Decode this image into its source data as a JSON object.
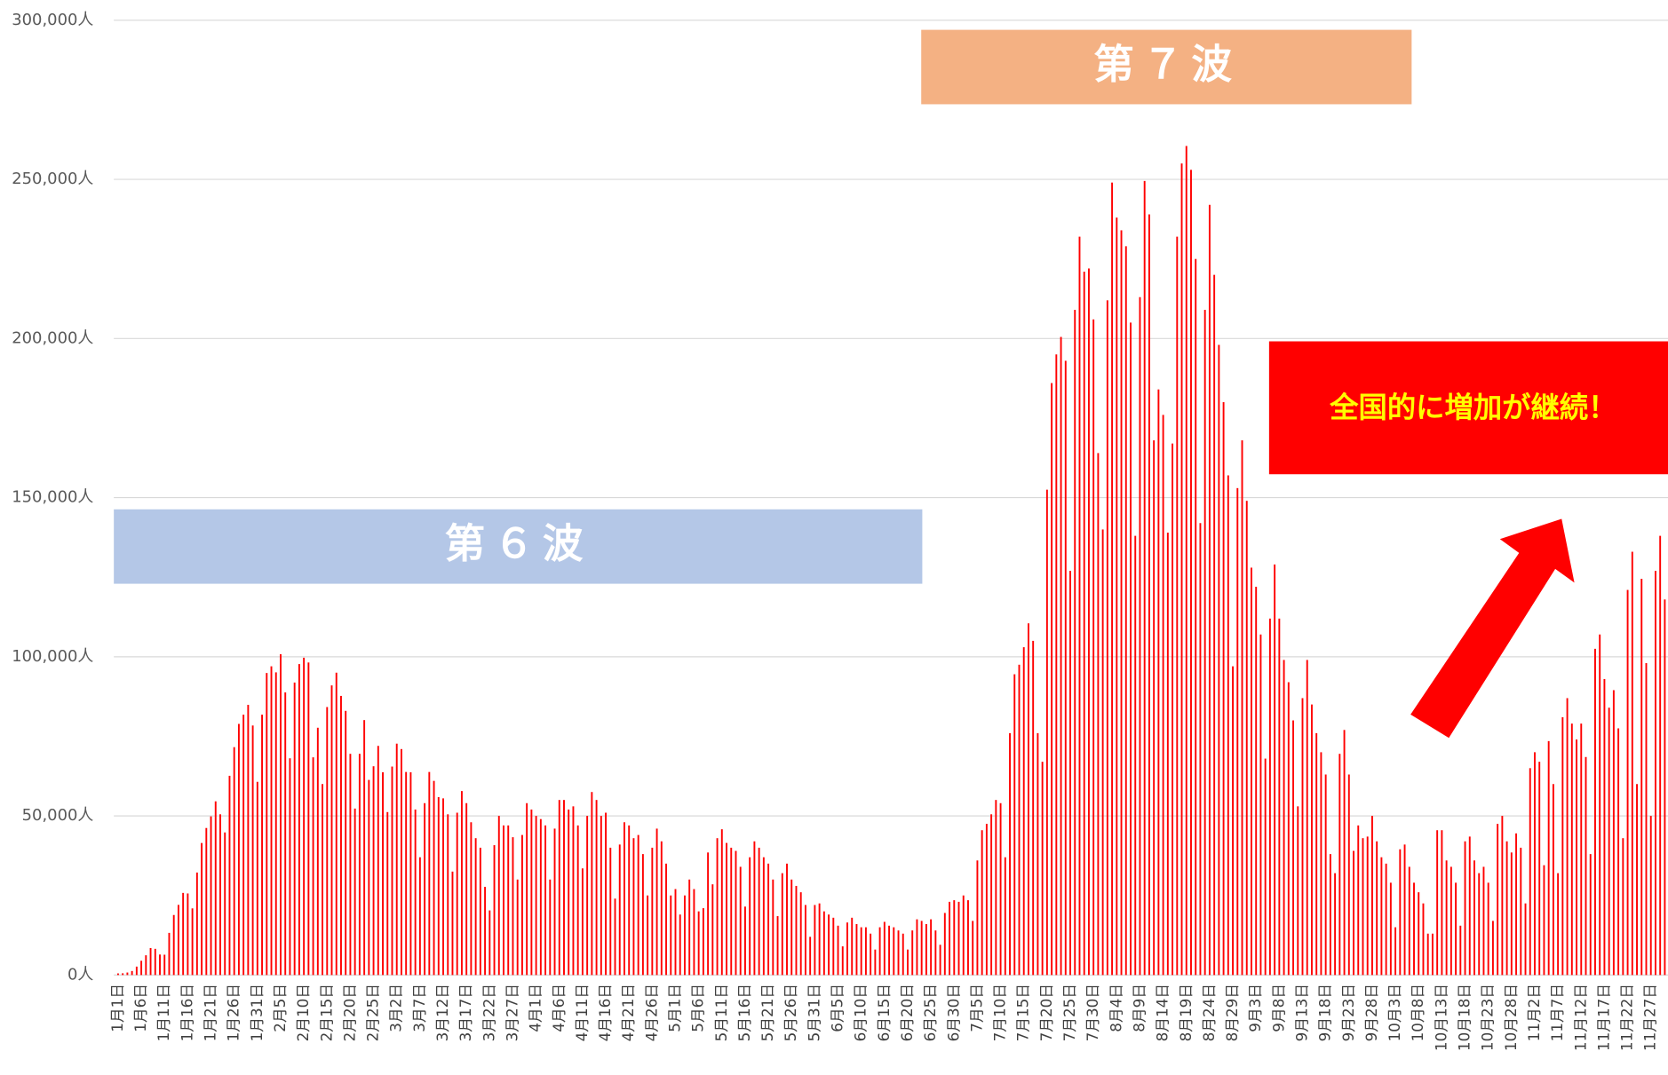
{
  "chart_data": {
    "type": "bar",
    "color": "#ff0000",
    "grid": true,
    "ylim": [
      0,
      300000
    ],
    "yticks": [
      {
        "value": 0,
        "label": "0人"
      },
      {
        "value": 50000,
        "label": "50,000人"
      },
      {
        "value": 100000,
        "label": "100,000人"
      },
      {
        "value": 150000,
        "label": "150,000人"
      },
      {
        "value": 200000,
        "label": "200,000人"
      },
      {
        "value": 250000,
        "label": "250,000人"
      },
      {
        "value": 300000,
        "label": "300,000人"
      }
    ],
    "annotations": [
      "第６波",
      "第７波",
      "全国的に増加が継続！"
    ],
    "categories": [
      "1月1日",
      null,
      null,
      null,
      null,
      "1月6日",
      null,
      null,
      null,
      null,
      "1月11日",
      null,
      null,
      null,
      null,
      "1月16日",
      null,
      null,
      null,
      null,
      "1月21日",
      null,
      null,
      null,
      null,
      "1月26日",
      null,
      null,
      null,
      null,
      "1月31日",
      null,
      null,
      null,
      null,
      "2月5日",
      null,
      null,
      null,
      null,
      "2月10日",
      null,
      null,
      null,
      null,
      "2月15日",
      null,
      null,
      null,
      null,
      "2月20日",
      null,
      null,
      null,
      null,
      "2月25日",
      null,
      null,
      null,
      null,
      "3月2日",
      null,
      null,
      null,
      null,
      "3月7日",
      null,
      null,
      null,
      null,
      "3月12日",
      null,
      null,
      null,
      null,
      "3月17日",
      null,
      null,
      null,
      null,
      "3月22日",
      null,
      null,
      null,
      null,
      "3月27日",
      null,
      null,
      null,
      null,
      "4月1日",
      null,
      null,
      null,
      null,
      "4月6日",
      null,
      null,
      null,
      null,
      "4月11日",
      null,
      null,
      null,
      null,
      "4月16日",
      null,
      null,
      null,
      null,
      "4月21日",
      null,
      null,
      null,
      null,
      "4月26日",
      null,
      null,
      null,
      null,
      "5月1日",
      null,
      null,
      null,
      null,
      "5月6日",
      null,
      null,
      null,
      null,
      "5月11日",
      null,
      null,
      null,
      null,
      "5月16日",
      null,
      null,
      null,
      null,
      "5月21日",
      null,
      null,
      null,
      null,
      "5月26日",
      null,
      null,
      null,
      null,
      "5月31日",
      null,
      null,
      null,
      null,
      "6月5日",
      null,
      null,
      null,
      null,
      "6月10日",
      null,
      null,
      null,
      null,
      "6月15日",
      null,
      null,
      null,
      null,
      "6月20日",
      null,
      null,
      null,
      null,
      "6月25日",
      null,
      null,
      null,
      null,
      "6月30日",
      null,
      null,
      null,
      null,
      "7月5日",
      null,
      null,
      null,
      null,
      "7月10日",
      null,
      null,
      null,
      null,
      "7月15日",
      null,
      null,
      null,
      null,
      "7月20日",
      null,
      null,
      null,
      null,
      "7月25日",
      null,
      null,
      null,
      null,
      "7月30日",
      null,
      null,
      null,
      null,
      "8月4日",
      null,
      null,
      null,
      null,
      "8月9日",
      null,
      null,
      null,
      null,
      "8月14日",
      null,
      null,
      null,
      null,
      "8月19日",
      null,
      null,
      null,
      null,
      "8月24日",
      null,
      null,
      null,
      null,
      "8月29日",
      null,
      null,
      null,
      null,
      "9月3日",
      null,
      null,
      null,
      null,
      "9月8日",
      null,
      null,
      null,
      null,
      "9月13日",
      null,
      null,
      null,
      null,
      "9月18日",
      null,
      null,
      null,
      null,
      "9月23日",
      null,
      null,
      null,
      null,
      "9月28日",
      null,
      null,
      null,
      null,
      "10月3日",
      null,
      null,
      null,
      null,
      "10月8日",
      null,
      null,
      null,
      null,
      "10月13日",
      null,
      null,
      null,
      null,
      "10月18日",
      null,
      null,
      null,
      null,
      "10月23日",
      null,
      null,
      null,
      null,
      "10月28日",
      null,
      null,
      null,
      null,
      "11月2日",
      null,
      null,
      null,
      null,
      "11月7日",
      null,
      null,
      null,
      null,
      "11月12日",
      null,
      null,
      null,
      null,
      "11月17日",
      null,
      null,
      null,
      null,
      "11月22日",
      null,
      null,
      null,
      null,
      "11月27日",
      null,
      null,
      null
    ],
    "values": [
      500,
      550,
      780,
      1260,
      2640,
      4470,
      6200,
      8480,
      8230,
      6440,
      6380,
      13240,
      18860,
      22040,
      25800,
      25630,
      20940,
      32200,
      41480,
      46200,
      49850,
      54570,
      50500,
      44800,
      62600,
      71600,
      78900,
      81800,
      84900,
      78400,
      60700,
      81800,
      94900,
      97000,
      95100,
      100800,
      88800,
      68100,
      91900,
      97700,
      99700,
      98200,
      68400,
      77700,
      60000,
      84200,
      91000,
      95000,
      87700,
      83000,
      69500,
      52300,
      69500,
      80100,
      61300,
      65600,
      72000,
      63700,
      51200,
      65500,
      72700,
      71000,
      63800,
      63700,
      52000,
      37000,
      54000,
      63800,
      61000,
      55900,
      55500,
      50500,
      32500,
      51000,
      57800,
      54000,
      48000,
      43000,
      40000,
      27700,
      20300,
      40800,
      50000,
      47000,
      47000,
      43300,
      30000,
      44000,
      54000,
      52000,
      50000,
      49000,
      47000,
      30000,
      46000,
      55000,
      55000,
      52000,
      53000,
      47000,
      33500,
      50000,
      57500,
      55000,
      50000,
      51000,
      40000,
      24000,
      41000,
      48000,
      47000,
      43000,
      44000,
      38000,
      25000,
      40000,
      46000,
      42000,
      35000,
      25000,
      27000,
      19000,
      25000,
      30000,
      27000,
      20000,
      21000,
      38500,
      28500,
      43000,
      45800,
      41500,
      40000,
      39000,
      34000,
      21500,
      37000,
      42000,
      40000,
      37000,
      35000,
      30000,
      18500,
      32000,
      35000,
      30000,
      28000,
      26000,
      22000,
      12000,
      22000,
      22500,
      20000,
      19000,
      18000,
      15500,
      9000,
      16500,
      18000,
      16000,
      15000,
      15000,
      13000,
      8000,
      15000,
      16700,
      15500,
      15000,
      14000,
      13000,
      8000,
      14000,
      17500,
      17000,
      16000,
      17500,
      14000,
      9500,
      19500,
      23000,
      23500,
      23000,
      25000,
      23500,
      17000,
      36000,
      45500,
      47500,
      50500,
      55000,
      54000,
      37000,
      76000,
      94500,
      97500,
      103000,
      110500,
      105000,
      76000,
      67000,
      152500,
      186000,
      195000,
      200500,
      193000,
      127000,
      209000,
      232000,
      221000,
      222000,
      206000,
      164000,
      140000,
      212000,
      249000,
      238000,
      234000,
      229000,
      205000,
      138000,
      213000,
      249500,
      239000,
      168000,
      184000,
      176000,
      139000,
      167000,
      232000,
      255000,
      260500,
      253000,
      225000,
      142000,
      209000,
      242000,
      220000,
      198000,
      180000,
      157000,
      97000,
      153000,
      168000,
      149000,
      128000,
      122000,
      107000,
      68000,
      112000,
      129000,
      112000,
      99000,
      92000,
      80000,
      53000,
      87000,
      99000,
      85000,
      76000,
      70000,
      63000,
      38000,
      32000,
      69500,
      77000,
      63000,
      39000,
      47000,
      43000,
      43500,
      50000,
      42000,
      37000,
      35000,
      29000,
      15000,
      39500,
      41000,
      34000,
      29000,
      26000,
      22500,
      13000,
      13000,
      45500,
      45500,
      36000,
      34000,
      29000,
      15500,
      42000,
      43500,
      36000,
      32000,
      34000,
      29000,
      17000,
      47500,
      50000,
      42000,
      38500,
      44500,
      40000,
      22500,
      65000,
      70000,
      67000,
      34500,
      73500,
      60000,
      32000,
      81000,
      87000,
      79000,
      74000,
      79000,
      68500,
      38000,
      102500,
      107000,
      93000,
      84000,
      89500,
      77500,
      43000,
      121000,
      133000,
      60000,
      124500,
      98000,
      50000,
      127000,
      138000,
      118000
    ]
  }
}
